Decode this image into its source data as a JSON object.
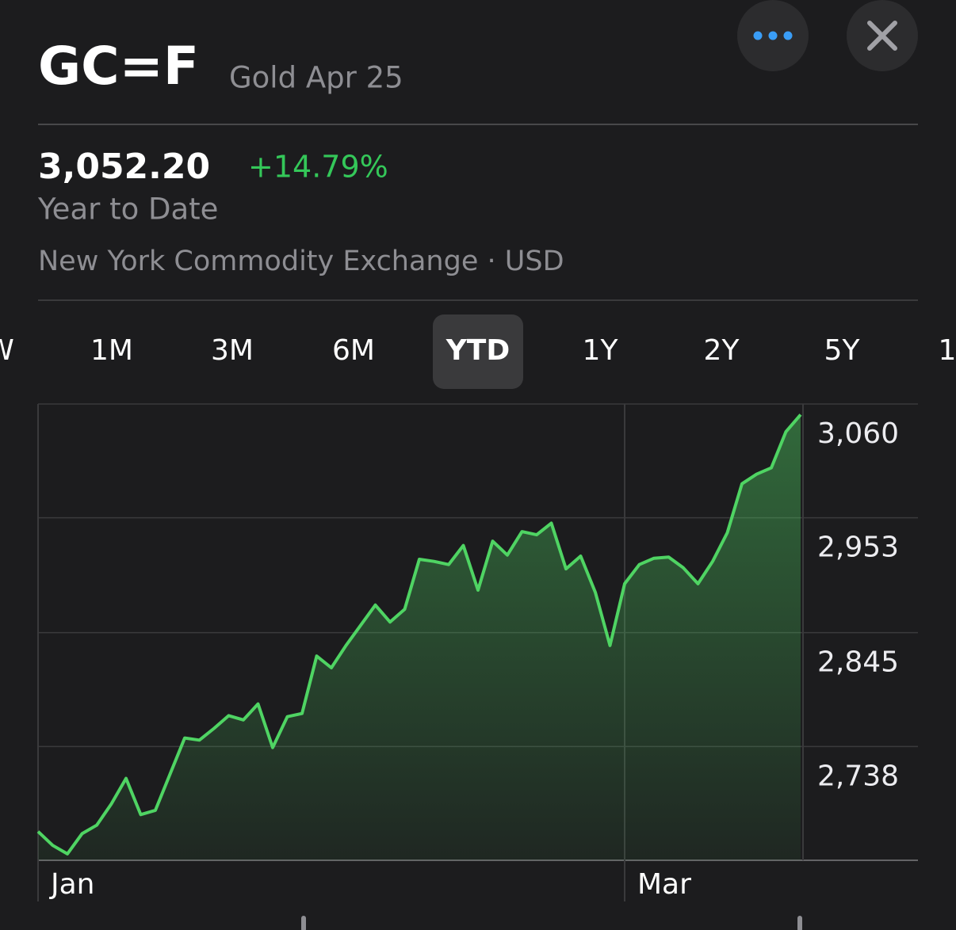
{
  "header": {
    "symbol": "GC=F",
    "name": "Gold Apr 25"
  },
  "quote": {
    "price": "3,052.20",
    "change": "+14.79%",
    "period": "Year to Date",
    "exchange": "New York Commodity Exchange · USD"
  },
  "ranges": [
    "W",
    "1M",
    "3M",
    "6M",
    "YTD",
    "1Y",
    "2Y",
    "5Y",
    "1"
  ],
  "selected_range": "YTD",
  "chart_data": {
    "type": "area",
    "color": "#4fd463",
    "categories": [
      "Jan",
      null,
      null,
      null,
      null,
      null,
      null,
      null,
      null,
      null,
      null,
      null,
      null,
      null,
      null,
      null,
      null,
      null,
      null,
      null,
      null,
      null,
      null,
      null,
      null,
      null,
      null,
      null,
      null,
      null,
      null,
      null,
      null,
      null,
      null,
      null,
      null,
      null,
      null,
      null,
      "Mar",
      null,
      null,
      null,
      null,
      null,
      null,
      null,
      null,
      null,
      null,
      null,
      null
    ],
    "values": [
      2658,
      2645,
      2637,
      2656,
      2664,
      2684,
      2708,
      2674,
      2678,
      2712,
      2746,
      2744,
      2755,
      2767,
      2763,
      2778,
      2737,
      2766,
      2769,
      2823,
      2812,
      2833,
      2852,
      2871,
      2855,
      2867,
      2914,
      2912,
      2909,
      2927,
      2885,
      2931,
      2918,
      2940,
      2937,
      2948,
      2905,
      2917,
      2883,
      2833,
      2891,
      2909,
      2915,
      2916,
      2906,
      2891,
      2912,
      2939,
      2985,
      2994,
      3000,
      3034,
      3050
    ],
    "ylim": [
      2631,
      3060
    ],
    "yticks": [
      {
        "value": 3060,
        "label": "3,060"
      },
      {
        "value": 2953,
        "label": "2,953"
      },
      {
        "value": 2845,
        "label": "2,845"
      },
      {
        "value": 2738,
        "label": "2,738"
      }
    ],
    "grid": true
  }
}
